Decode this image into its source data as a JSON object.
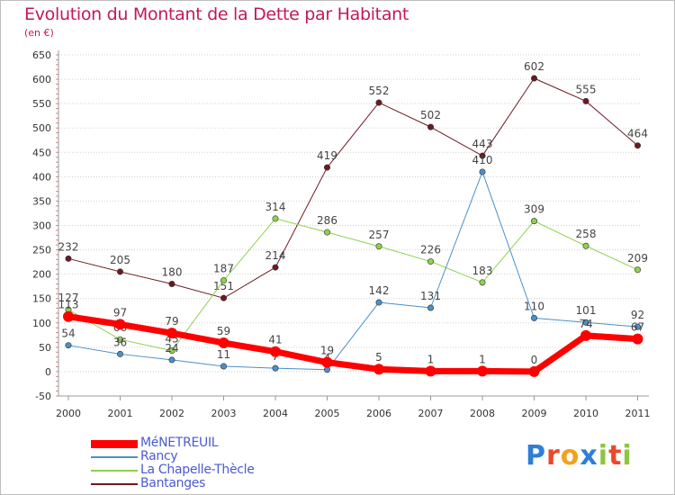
{
  "title": "Evolution du Montant de la Dette par Habitant",
  "unit_label": "(en €)",
  "brand": {
    "text": "Proxiti",
    "letters": [
      {
        "ch": "P",
        "color": "#2f7fd6"
      },
      {
        "ch": "r",
        "color": "#e84a2a"
      },
      {
        "ch": "o",
        "color": "#f2a21f"
      },
      {
        "ch": "x",
        "color": "#2f7fd6"
      },
      {
        "ch": "i",
        "color": "#8cc63f"
      },
      {
        "ch": "t",
        "color": "#e84a2a"
      },
      {
        "ch": "i",
        "color": "#8cc63f"
      }
    ]
  },
  "chart_data": {
    "type": "line",
    "x": [
      "2000",
      "2001",
      "2002",
      "2003",
      "2004",
      "2005",
      "2006",
      "2007",
      "2008",
      "2009",
      "2010",
      "2011"
    ],
    "ylim": [
      -50,
      650
    ],
    "yticks": [
      -50,
      0,
      50,
      100,
      150,
      200,
      250,
      300,
      350,
      400,
      450,
      500,
      550,
      600,
      650
    ],
    "grid": "horizontal-dotted",
    "legend_position": "bottom-left",
    "series": [
      {
        "name": "Bantanges",
        "color": "#6b1a22",
        "width": 1,
        "values": [
          232,
          205,
          180,
          151,
          214,
          419,
          552,
          502,
          443,
          602,
          555,
          464
        ],
        "labels": [
          "232",
          "205",
          "180",
          "151",
          "214",
          "419",
          "552",
          "502",
          "443",
          "602",
          "555",
          "464"
        ]
      },
      {
        "name": "La Chapelle-Thècle",
        "color": "#8fd14f",
        "width": 1,
        "values": [
          127,
          66,
          43,
          187,
          314,
          286,
          257,
          226,
          183,
          309,
          258,
          209
        ],
        "labels": [
          "127",
          "66",
          "43",
          "187",
          "314",
          "286",
          "257",
          "226",
          "183",
          "309",
          "258",
          "209"
        ]
      },
      {
        "name": "Rancy",
        "color": "#4a90c8",
        "width": 1,
        "values": [
          54,
          36,
          24,
          11,
          7,
          4,
          142,
          131,
          410,
          110,
          101,
          92
        ],
        "labels": [
          "54",
          "36",
          "24",
          "11",
          "7",
          "4",
          "142",
          "131",
          "410",
          "110",
          "101",
          "92"
        ]
      },
      {
        "name": "MéNETREUIL",
        "color": "#ff0000",
        "width": 7,
        "values": [
          113,
          97,
          79,
          59,
          41,
          19,
          5,
          1,
          1,
          0,
          74,
          67
        ],
        "labels": [
          "113",
          "97",
          "79",
          "59",
          "41",
          "19",
          "5",
          "1",
          "1",
          "0",
          "74",
          "67"
        ]
      }
    ]
  }
}
